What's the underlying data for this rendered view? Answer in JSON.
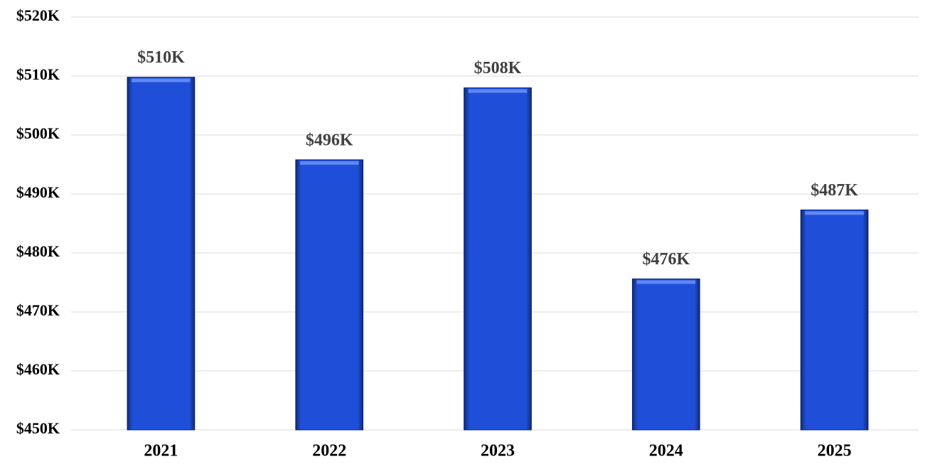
{
  "chart_data": {
    "type": "bar",
    "categories": [
      "2021",
      "2022",
      "2023",
      "2024",
      "2025"
    ],
    "values": [
      509800,
      495800,
      508000,
      475600,
      487300
    ],
    "value_labels": [
      "$510K",
      "$496K",
      "$508K",
      "$476K",
      "$487K"
    ],
    "color": "#1f4fd8",
    "ylim": [
      450000,
      520000
    ],
    "yticks": [
      {
        "value": 450000,
        "label": "$450K"
      },
      {
        "value": 460000,
        "label": "$460K"
      },
      {
        "value": 470000,
        "label": "$470K"
      },
      {
        "value": 480000,
        "label": "$480K"
      },
      {
        "value": 490000,
        "label": "$490K"
      },
      {
        "value": 500000,
        "label": "$500K"
      },
      {
        "value": 510000,
        "label": "$510K"
      },
      {
        "value": 520000,
        "label": "$520K"
      }
    ],
    "grid": true
  }
}
